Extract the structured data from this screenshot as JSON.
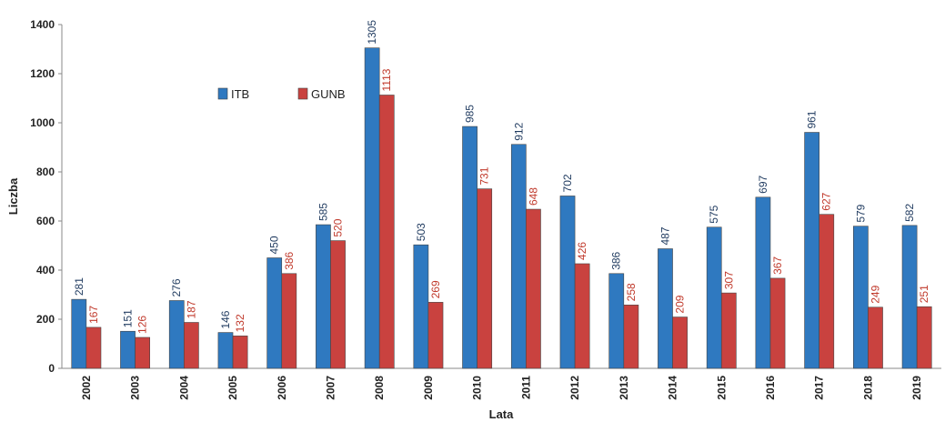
{
  "chart_data": {
    "type": "bar",
    "categories": [
      "2002",
      "2003",
      "2004",
      "2005",
      "2006",
      "2007",
      "2008",
      "2009",
      "2010",
      "2011",
      "2012",
      "2013",
      "2014",
      "2015",
      "2016",
      "2017",
      "2018",
      "2019"
    ],
    "series": [
      {
        "name": "ITB",
        "color": "#2f79c0",
        "values": [
          281,
          151,
          276,
          146,
          450,
          585,
          1305,
          503,
          985,
          912,
          702,
          386,
          487,
          575,
          697,
          961,
          579,
          582
        ]
      },
      {
        "name": "GUNB",
        "color": "#c9423f",
        "values": [
          167,
          126,
          187,
          132,
          386,
          520,
          1113,
          269,
          731,
          648,
          426,
          258,
          209,
          307,
          367,
          627,
          249,
          251
        ]
      }
    ],
    "y_label": "Liczba",
    "x_label": "Lata",
    "ylim": [
      0,
      1400
    ],
    "yticks": [
      0,
      200,
      400,
      600,
      800,
      1000,
      1200,
      1400
    ],
    "grid": false,
    "legend": "top-left"
  }
}
